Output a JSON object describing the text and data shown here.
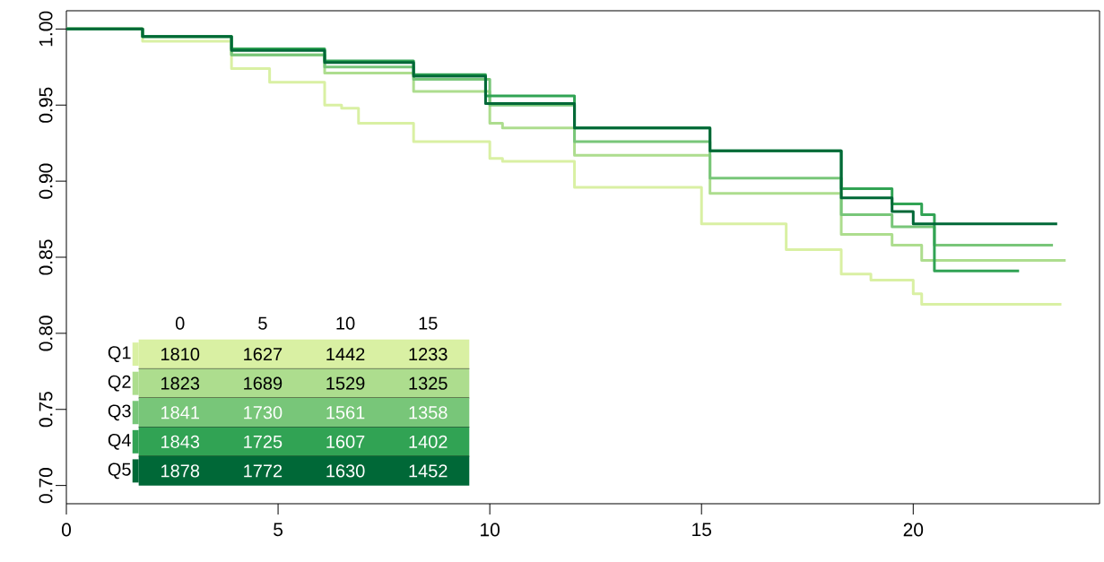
{
  "chart_data": {
    "type": "step",
    "xlim": [
      0,
      24.4
    ],
    "ylim": [
      0.688,
      1.012
    ],
    "xticks": [
      0,
      5,
      10,
      15,
      20
    ],
    "yticks": [
      {
        "value": 0.7,
        "label": "0.70"
      },
      {
        "value": 0.75,
        "label": "0.75"
      },
      {
        "value": 0.8,
        "label": "0.80"
      },
      {
        "value": 0.85,
        "label": "0.85"
      },
      {
        "value": 0.9,
        "label": "0.90"
      },
      {
        "value": 0.95,
        "label": "0.95"
      },
      {
        "value": 1.0,
        "label": "1.00"
      }
    ],
    "legend": "bottom left",
    "series": [
      {
        "name": "Q1",
        "color": "#d9f0a3",
        "x": [
          0,
          1.8,
          3.9,
          4.8,
          6.1,
          6.5,
          6.9,
          8.2,
          10.0,
          10.3,
          12,
          15,
          17,
          18.3,
          19,
          20.0,
          20.2,
          23.5
        ],
        "values": [
          1.0,
          0.992,
          0.974,
          0.965,
          0.95,
          0.948,
          0.938,
          0.926,
          0.915,
          0.913,
          0.896,
          0.872,
          0.855,
          0.839,
          0.835,
          0.826,
          0.819,
          0.819
        ]
      },
      {
        "name": "Q2",
        "color": "#addd8e",
        "x": [
          0,
          1.8,
          3.9,
          6.1,
          8.2,
          10.0,
          10.3,
          12,
          15.2,
          18.3,
          19.5,
          20.2,
          23.6
        ],
        "values": [
          1.0,
          0.995,
          0.983,
          0.971,
          0.959,
          0.938,
          0.935,
          0.917,
          0.892,
          0.865,
          0.858,
          0.848,
          0.848
        ]
      },
      {
        "name": "Q3",
        "color": "#78c679",
        "x": [
          0,
          1.8,
          3.9,
          6.1,
          8.2,
          10.0,
          12,
          15.2,
          18.3,
          19.5,
          20.5,
          23.3
        ],
        "values": [
          1.0,
          0.995,
          0.983,
          0.975,
          0.967,
          0.95,
          0.926,
          0.902,
          0.878,
          0.87,
          0.858,
          0.858
        ]
      },
      {
        "name": "Q4",
        "color": "#31a354",
        "x": [
          0,
          1.8,
          3.9,
          6.1,
          8.2,
          9.9,
          12,
          15.2,
          18.3,
          19.5,
          20.2,
          20.5,
          22.5
        ],
        "values": [
          1.0,
          0.995,
          0.987,
          0.979,
          0.97,
          0.956,
          0.935,
          0.92,
          0.895,
          0.885,
          0.878,
          0.841,
          0.841
        ]
      },
      {
        "name": "Q5",
        "color": "#006837",
        "x": [
          0,
          1.8,
          3.9,
          6.1,
          8.2,
          9.9,
          12,
          15.2,
          18.3,
          19.5,
          20.0,
          23.4
        ],
        "values": [
          1.0,
          0.995,
          0.986,
          0.978,
          0.969,
          0.951,
          0.935,
          0.92,
          0.889,
          0.88,
          0.872,
          0.872
        ]
      }
    ],
    "annotations": [
      "0",
      "5",
      "10",
      "15",
      "1810",
      "1627",
      "1442",
      "1233",
      "1823",
      "1689",
      "1529",
      "1325",
      "1841",
      "1730",
      "1561",
      "1358",
      "1843",
      "1725",
      "1607",
      "1402",
      "1878",
      "1772",
      "1630",
      "1452"
    ]
  }
}
